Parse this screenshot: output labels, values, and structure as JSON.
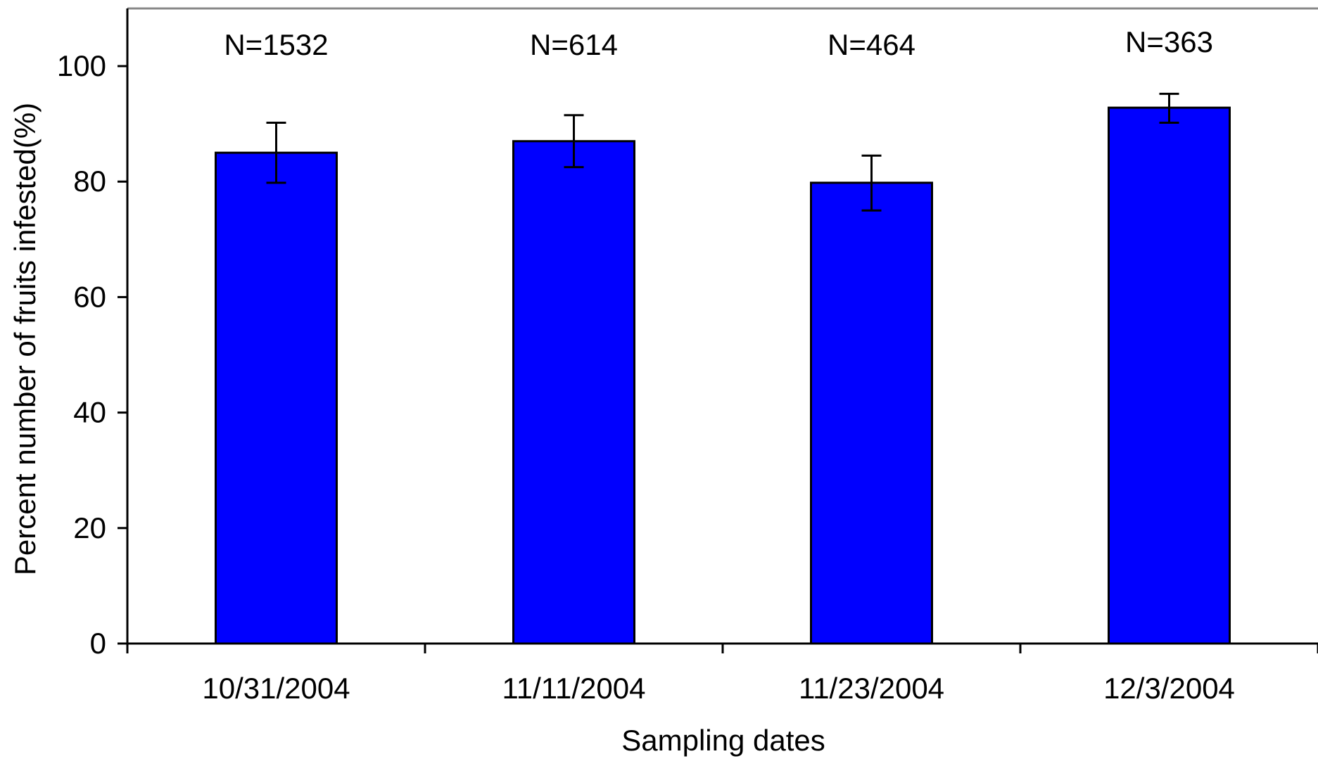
{
  "chart_data": {
    "type": "bar",
    "title": "",
    "xlabel": "Sampling dates",
    "ylabel": "Percent number of fruits infested(%)",
    "ylim": [
      0,
      110
    ],
    "yticks": [
      0,
      20,
      40,
      60,
      80,
      100
    ],
    "categories": [
      "10/31/2004",
      "11/11/2004",
      "11/23/2004",
      "12/3/2004"
    ],
    "values": [
      85.0,
      87.0,
      79.8,
      92.8
    ],
    "error_low": [
      79.8,
      82.5,
      75.0,
      90.2
    ],
    "error_high": [
      90.2,
      91.5,
      84.5,
      95.2
    ],
    "annotations": [
      "N=1532",
      "N=614",
      "N=464",
      "N=363"
    ],
    "bar_color": "#0000ff",
    "grid": false,
    "legend": "none"
  }
}
